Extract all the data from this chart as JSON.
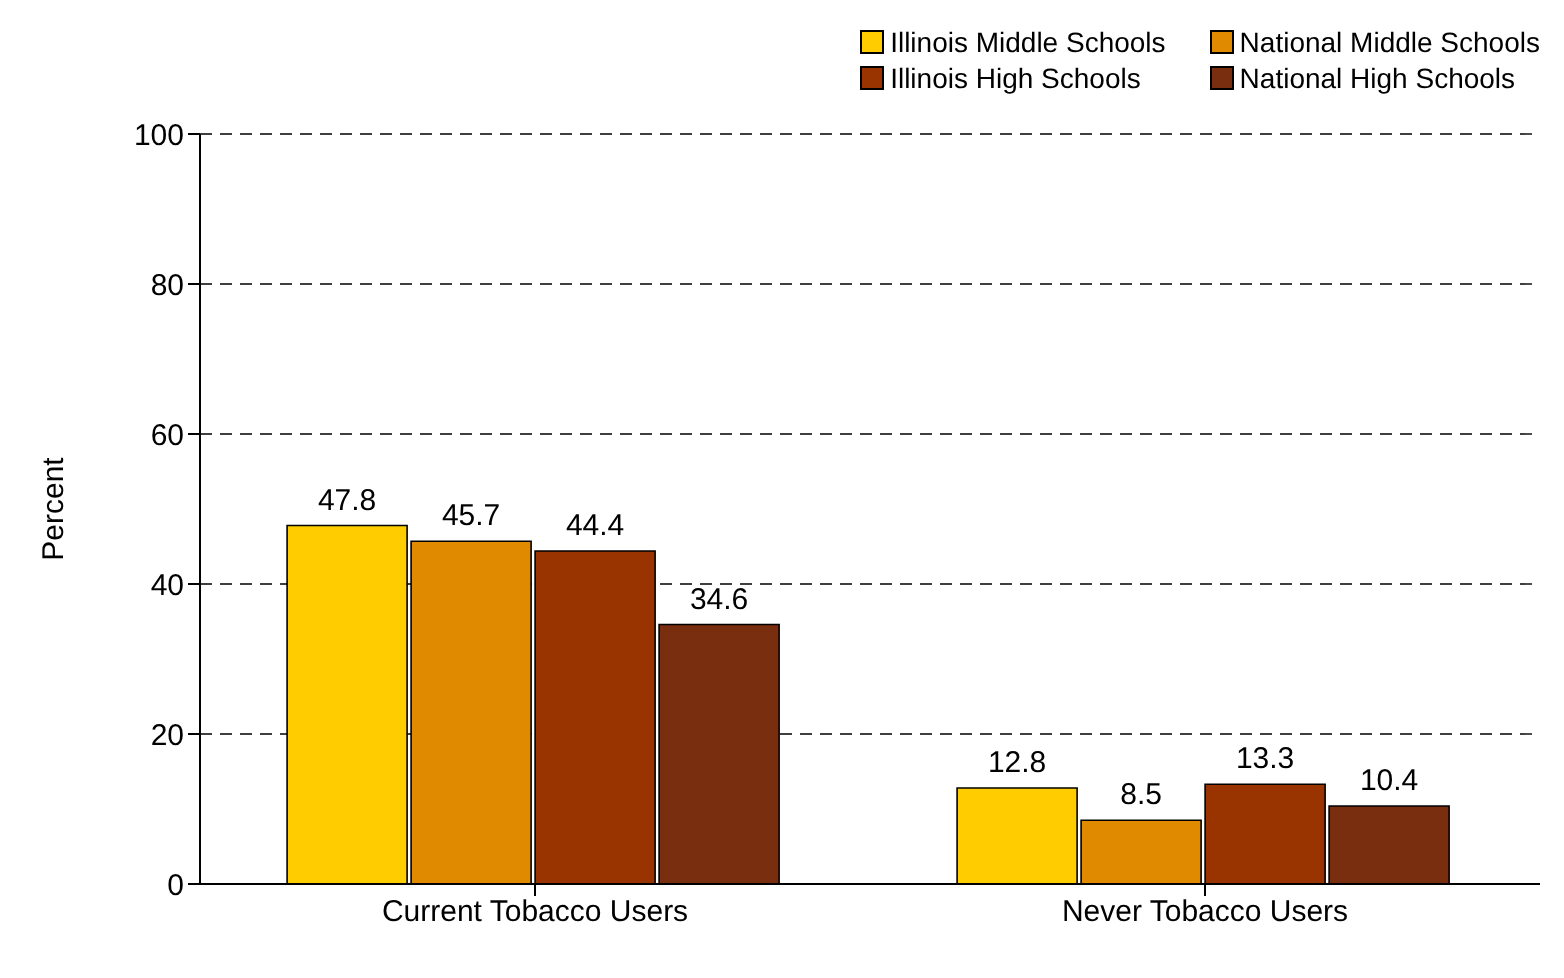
{
  "chart_data": {
    "type": "bar",
    "ylabel": "Percent",
    "categories": [
      "Current Tobacco Users",
      "Never Tobacco Users"
    ],
    "series": [
      {
        "name": "Illinois Middle Schools",
        "color": "#ffcc00",
        "values": [
          47.8,
          12.8
        ]
      },
      {
        "name": "National Middle Schools",
        "color": "#e08a00",
        "values": [
          45.7,
          8.5
        ]
      },
      {
        "name": "Illinois High Schools",
        "color": "#993300",
        "values": [
          44.4,
          13.3
        ]
      },
      {
        "name": "National High Schools",
        "color": "#7a2e10",
        "values": [
          34.6,
          10.4
        ]
      }
    ],
    "ylim": [
      0,
      100
    ],
    "yticks": [
      0,
      20,
      40,
      60,
      80,
      100
    ],
    "grid": "y",
    "legend": "top",
    "data_labels": true
  }
}
